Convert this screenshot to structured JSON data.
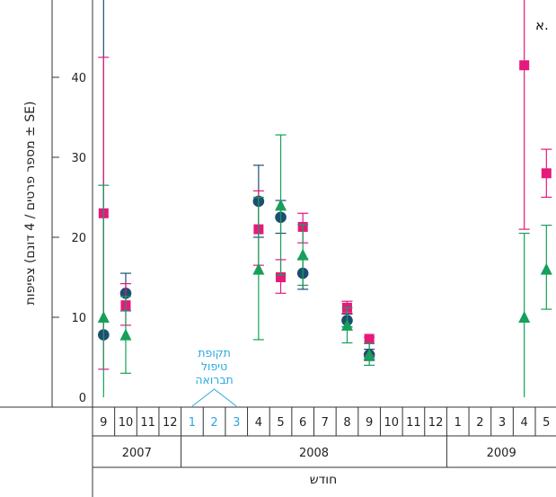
{
  "chart_data": {
    "type": "scatter",
    "panel_label": "א.",
    "ylabel": "צפיפות (מספר פרטים / 4 דונם ± SE)",
    "xlabel": "חודש",
    "ylim": [
      0,
      50
    ],
    "yticks": [
      0,
      10,
      20,
      30,
      40
    ],
    "months": [
      "9",
      "10",
      "11",
      "12",
      "1",
      "2",
      "3",
      "4",
      "5",
      "6",
      "7",
      "8",
      "9",
      "10",
      "11",
      "12",
      "1",
      "2",
      "3",
      "4",
      "5"
    ],
    "highlight_months_index": [
      4,
      5,
      6
    ],
    "years": [
      {
        "label": "2007",
        "start": 0,
        "end": 3
      },
      {
        "label": "2008",
        "start": 4,
        "end": 15
      },
      {
        "label": "2009",
        "start": 16,
        "end": 20
      }
    ],
    "annotation": "תקופת\nטיפול\nתברואה",
    "series": [
      {
        "marker": "circle",
        "color": "#1b4f72",
        "points": [
          {
            "month_index": 0,
            "y": 7.8,
            "err_low": null,
            "err_high": 50
          },
          {
            "month_index": 1,
            "y": 13.0,
            "err_low": 10.8,
            "err_high": 15.5
          },
          {
            "month_index": 7,
            "y": 24.5,
            "err_low": 20.0,
            "err_high": 29.0
          },
          {
            "month_index": 8,
            "y": 22.5,
            "err_low": 20.5,
            "err_high": 24.6
          },
          {
            "month_index": 9,
            "y": 15.5,
            "err_low": 13.5,
            "err_high": 17.3
          },
          {
            "month_index": 11,
            "y": 9.6,
            "err_low": 8.8,
            "err_high": 10.4
          },
          {
            "month_index": 12,
            "y": 5.3,
            "err_low": 4.6,
            "err_high": 6.0
          }
        ]
      },
      {
        "marker": "square",
        "color": "#e6197d",
        "points": [
          {
            "month_index": 0,
            "y": 23.0,
            "err_low": 3.5,
            "err_high": 42.5
          },
          {
            "month_index": 1,
            "y": 11.5,
            "err_low": 9.0,
            "err_high": 14.2
          },
          {
            "month_index": 7,
            "y": 21.0,
            "err_low": 16.5,
            "err_high": 25.8
          },
          {
            "month_index": 8,
            "y": 15.0,
            "err_low": 13.0,
            "err_high": 17.2
          },
          {
            "month_index": 9,
            "y": 21.3,
            "err_low": 19.3,
            "err_high": 23.0
          },
          {
            "month_index": 11,
            "y": 11.2,
            "err_low": 10.5,
            "err_high": 12.0
          },
          {
            "month_index": 12,
            "y": 7.3,
            "err_low": 5.2,
            "err_high": 7.5
          },
          {
            "month_index": 19,
            "y": 41.5,
            "err_low": 21.0,
            "err_high": 50
          },
          {
            "month_index": 20,
            "y": 28.0,
            "err_low": 25.0,
            "err_high": 31.0
          }
        ]
      },
      {
        "marker": "triangle",
        "color": "#16a05a",
        "points": [
          {
            "month_index": 0,
            "y": 10.0,
            "err_low": 0,
            "err_high": 26.5
          },
          {
            "month_index": 1,
            "y": 7.8,
            "err_low": 3.0,
            "err_high": 12.6
          },
          {
            "month_index": 7,
            "y": 16.0,
            "err_low": 7.2,
            "err_high": 25.0
          },
          {
            "month_index": 8,
            "y": 24.0,
            "err_low": 15.3,
            "err_high": 32.8
          },
          {
            "month_index": 9,
            "y": 17.8,
            "err_low": 14.0,
            "err_high": 21.6
          },
          {
            "month_index": 11,
            "y": 9.0,
            "err_low": 6.8,
            "err_high": 11.2
          },
          {
            "month_index": 12,
            "y": 5.3,
            "err_low": 4.0,
            "err_high": 6.7
          },
          {
            "month_index": 19,
            "y": 10.0,
            "err_low": 0,
            "err_high": 20.5
          },
          {
            "month_index": 20,
            "y": 16.0,
            "err_low": 11.0,
            "err_high": 21.5
          }
        ]
      }
    ]
  }
}
